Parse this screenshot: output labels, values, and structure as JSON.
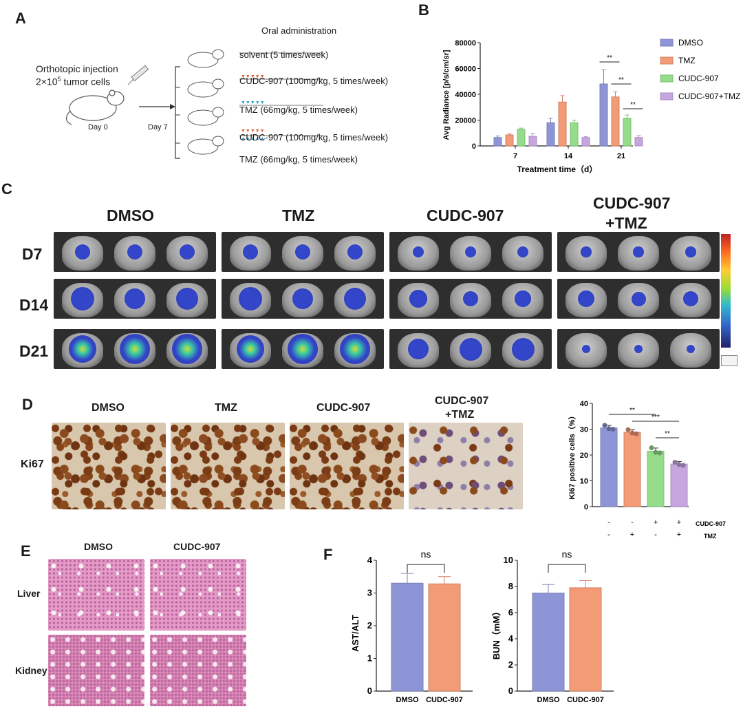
{
  "panels": {
    "a": "A",
    "b": "B",
    "c": "C",
    "d": "D",
    "e": "E",
    "f": "F"
  },
  "panel_a": {
    "left_text_1": "Orthotopic injection",
    "left_text_2_prefix": "2×10",
    "left_text_2_sup": "5",
    "left_text_2_suffix": " tumor cells",
    "day0": "Day 0",
    "day7": "Day 7",
    "oral": "Oral administration",
    "groups": [
      "solvent (5 times/week)",
      "CUDC-907 (100mg/kg, 5 times/week)",
      "TMZ (66mg/kg, 5 times/week)",
      "CUDC-907 (100mg/kg, 5 times/week)",
      "TMZ (66mg/kg, 5 times/week)"
    ]
  },
  "panel_c": {
    "columns": [
      "DMSO",
      "TMZ",
      "CUDC-907",
      "CUDC-907",
      "+TMZ"
    ],
    "rows": [
      "D7",
      "D14",
      "D21"
    ]
  },
  "panel_d": {
    "columns": [
      "DMSO",
      "TMZ",
      "CUDC-907",
      "CUDC-907",
      "+TMZ"
    ],
    "row_label": "Ki67",
    "cudc_label": "CUDC-907",
    "tmz_label": "TMZ",
    "cudc_signs": [
      "-",
      "-",
      "+",
      "+"
    ],
    "tmz_signs": [
      "-",
      "+",
      "-",
      "+"
    ]
  },
  "panel_e": {
    "columns": [
      "DMSO",
      "CUDC-907"
    ],
    "rows": [
      "Liver",
      "Kidney"
    ]
  },
  "colors": {
    "dmso": "#8e95d6",
    "tmz": "#f39a76",
    "cudc": "#95dd8b",
    "combo": "#c7a6e0"
  },
  "chart_data": [
    {
      "type": "bar",
      "panel": "B",
      "categories": [
        "7",
        "14",
        "21"
      ],
      "series": [
        {
          "name": "DMSO",
          "values": [
            6500,
            18000,
            48000
          ],
          "errors": [
            1200,
            3500,
            11000
          ]
        },
        {
          "name": "TMZ",
          "values": [
            8500,
            34000,
            38000
          ],
          "errors": [
            800,
            5000,
            4000
          ]
        },
        {
          "name": "CUDC-907",
          "values": [
            13000,
            18000,
            21500
          ],
          "errors": [
            800,
            2000,
            2500
          ]
        },
        {
          "name": "CUDC-907+TMZ",
          "values": [
            7500,
            6500,
            6500
          ],
          "errors": [
            2200,
            800,
            1500
          ]
        }
      ],
      "xlabel": "Treatment time（d）",
      "ylabel": "Avg Radiance [p/s/cm/sr]",
      "ylim": [
        0,
        80000
      ],
      "yticks": [
        "0",
        "20000",
        "40000",
        "60000",
        "80000"
      ],
      "significance": [
        "**",
        "**",
        "**"
      ],
      "legend": "right"
    },
    {
      "type": "bar",
      "panel": "D",
      "categories": [
        "DMSO",
        "TMZ",
        "CUDC-907",
        "CUDC-907+TMZ"
      ],
      "values": [
        30.5,
        28.8,
        21.5,
        16.5
      ],
      "errors": [
        1.0,
        1.0,
        1.2,
        1.0
      ],
      "points": [
        [
          31.5,
          30.2,
          30.0
        ],
        [
          29.8,
          28.5,
          28.2
        ],
        [
          22.8,
          21.0,
          20.8
        ],
        [
          17.2,
          16.3,
          16.0
        ]
      ],
      "ylabel": "Ki67 positive cells（%）",
      "ylim": [
        0,
        40
      ],
      "yticks": [
        "0",
        "10",
        "20",
        "30",
        "40"
      ],
      "significance": [
        "**",
        "***",
        "**"
      ]
    },
    {
      "type": "bar",
      "panel": "F-left",
      "categories": [
        "DMSO",
        "CUDC-907"
      ],
      "values": [
        3.3,
        3.28
      ],
      "errors": [
        0.3,
        0.22
      ],
      "ylabel": "AST/ALT",
      "ylim": [
        0,
        4
      ],
      "yticks": [
        "0",
        "1",
        "2",
        "3",
        "4"
      ],
      "significance": "ns"
    },
    {
      "type": "bar",
      "panel": "F-right",
      "categories": [
        "DMSO",
        "CUDC-907"
      ],
      "values": [
        7.5,
        7.9
      ],
      "errors": [
        0.65,
        0.55
      ],
      "ylabel": "BUN（mM）",
      "ylim": [
        0,
        10
      ],
      "yticks": [
        "0",
        "2",
        "4",
        "6",
        "8",
        "10"
      ],
      "significance": "ns"
    }
  ]
}
